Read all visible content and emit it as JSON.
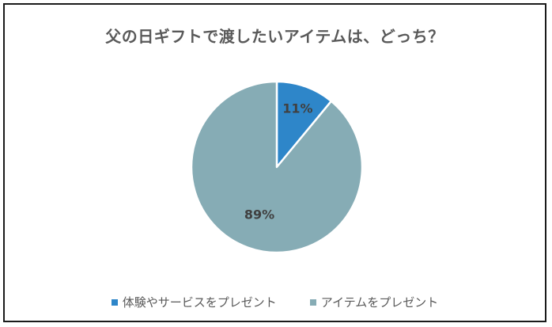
{
  "chart_data": {
    "type": "pie",
    "title": "父の日ギフトで渡したいアイテムは、どっち？",
    "categories": [
      "体験やサービスをプレゼント",
      "アイテムをプレゼント"
    ],
    "values": [
      11,
      89
    ],
    "data_labels": [
      "11%",
      "89%"
    ],
    "colors": [
      "#2e86c9",
      "#86acb5"
    ],
    "slice_border_color": "#ffffff",
    "legend_position": "bottom"
  }
}
